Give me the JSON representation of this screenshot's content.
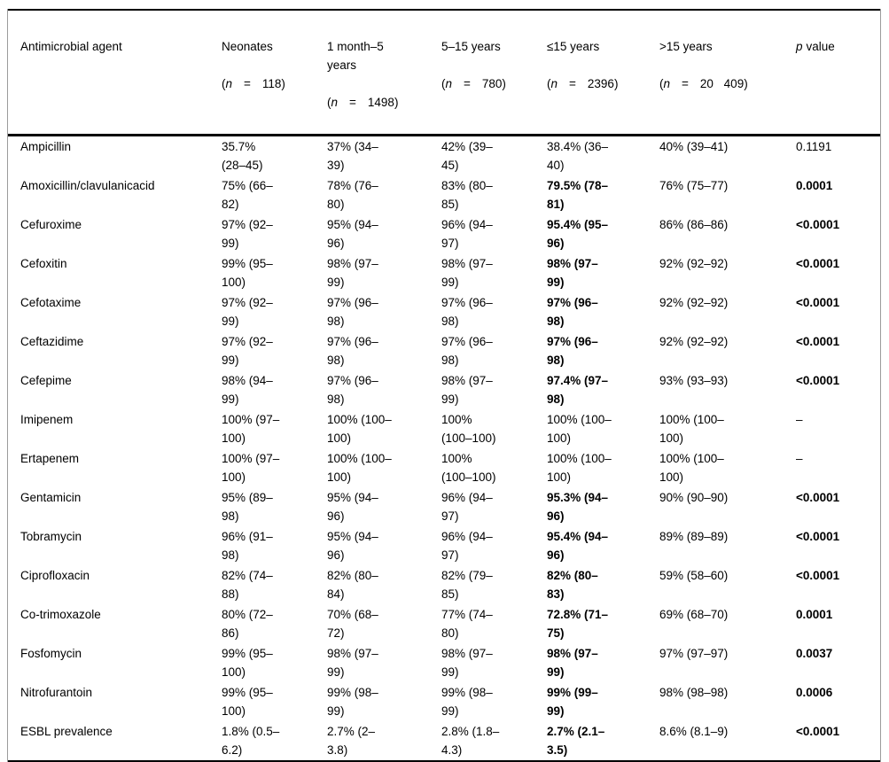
{
  "table": {
    "columns": [
      {
        "label": "Antimicrobial agent"
      },
      {
        "label": "Neonates",
        "n_open": "(",
        "n_sym": "n",
        "n_eq": "=",
        "n_val": "118)"
      },
      {
        "label": "1 month–5\nyears",
        "n_open": "(",
        "n_sym": "n",
        "n_eq": "=",
        "n_val": "1498)"
      },
      {
        "label": "5–15 years",
        "n_open": "(",
        "n_sym": "n",
        "n_eq": "=",
        "n_val": "780)"
      },
      {
        "label": "≤15 years",
        "n_open": "(",
        "n_sym": "n",
        "n_eq": "=",
        "n_val": "2396)"
      },
      {
        "label": ">15 years",
        "n_open": "(",
        "n_sym": "n",
        "n_eq": "=",
        "n_val": "20 409)"
      },
      {
        "label_sym": "p",
        "label_rest": "value"
      }
    ],
    "rows": [
      {
        "agent": "Ampicillin",
        "values": [
          "35.7%\n(28–45)",
          "37% (34–\n39)",
          "42% (39–\n45)",
          "38.4% (36–\n40)",
          "40% (39–41)"
        ],
        "p": "0.1191",
        "significant": false
      },
      {
        "agent": "Amoxicillin/clavulanicacid",
        "values": [
          "75% (66–\n82)",
          "78% (76–\n80)",
          "83% (80–\n85)",
          "79.5% (78–\n81)",
          "76% (75–77)"
        ],
        "p": "0.0001",
        "significant": true
      },
      {
        "agent": "Cefuroxime",
        "values": [
          "97% (92–\n99)",
          "95% (94–\n96)",
          "96% (94–\n97)",
          "95.4% (95–\n96)",
          "86% (86–86)"
        ],
        "p": "<0.0001",
        "significant": true
      },
      {
        "agent": "Cefoxitin",
        "values": [
          "99% (95–\n100)",
          "98% (97–\n99)",
          "98% (97–\n99)",
          "98% (97–\n99)",
          "92% (92–92)"
        ],
        "p": "<0.0001",
        "significant": true
      },
      {
        "agent": "Cefotaxime",
        "values": [
          "97% (92–\n99)",
          "97% (96–\n98)",
          "97% (96–\n98)",
          "97% (96–\n98)",
          "92% (92–92)"
        ],
        "p": "<0.0001",
        "significant": true
      },
      {
        "agent": "Ceftazidime",
        "values": [
          "97% (92–\n99)",
          "97% (96–\n98)",
          "97% (96–\n98)",
          "97% (96–\n98)",
          "92% (92–92)"
        ],
        "p": "<0.0001",
        "significant": true
      },
      {
        "agent": "Cefepime",
        "values": [
          "98% (94–\n99)",
          "97% (96–\n98)",
          "98% (97–\n99)",
          "97.4% (97–\n98)",
          "93% (93–93)"
        ],
        "p": "<0.0001",
        "significant": true
      },
      {
        "agent": "Imipenem",
        "values": [
          "100% (97–\n100)",
          "100% (100–\n100)",
          "100%\n(100–100)",
          "100% (100–\n100)",
          "100% (100–\n100)"
        ],
        "p": "–",
        "significant": false
      },
      {
        "agent": "Ertapenem",
        "values": [
          "100% (97–\n100)",
          "100% (100–\n100)",
          "100%\n(100–100)",
          "100% (100–\n100)",
          "100% (100–\n100)"
        ],
        "p": "–",
        "significant": false
      },
      {
        "agent": "Gentamicin",
        "values": [
          "95% (89–\n98)",
          "95% (94–\n96)",
          "96% (94–\n97)",
          "95.3% (94–\n96)",
          "90% (90–90)"
        ],
        "p": "<0.0001",
        "significant": true
      },
      {
        "agent": "Tobramycin",
        "values": [
          "96% (91–\n98)",
          "95% (94–\n96)",
          "96% (94–\n97)",
          "95.4% (94–\n96)",
          "89% (89–89)"
        ],
        "p": "<0.0001",
        "significant": true
      },
      {
        "agent": "Ciprofloxacin",
        "values": [
          "82% (74–\n88)",
          "82% (80–\n84)",
          "82% (79–\n85)",
          "82% (80–\n83)",
          "59% (58–60)"
        ],
        "p": "<0.0001",
        "significant": true
      },
      {
        "agent": "Co-trimoxazole",
        "values": [
          "80% (72–\n86)",
          "70% (68–\n72)",
          "77% (74–\n80)",
          "72.8% (71–\n75)",
          "69% (68–70)"
        ],
        "p": "0.0001",
        "significant": true
      },
      {
        "agent": "Fosfomycin",
        "values": [
          "99% (95–\n100)",
          "98% (97–\n99)",
          "98% (97–\n99)",
          "98% (97–\n99)",
          "97% (97–97)"
        ],
        "p": "0.0037",
        "significant": true
      },
      {
        "agent": "Nitrofurantoin",
        "values": [
          "99% (95–\n100)",
          "99% (98–\n99)",
          "99% (98–\n99)",
          "99% (99–\n99)",
          "98% (98–98)"
        ],
        "p": "0.0006",
        "significant": true
      },
      {
        "agent": "ESBL prevalence",
        "values": [
          "1.8% (0.5–\n6.2)",
          "2.7% (2–\n3.8)",
          "2.8% (1.8–\n4.3)",
          "2.7% (2.1–\n3.5)",
          "8.6% (8.1–9)"
        ],
        "p": "<0.0001",
        "significant": true
      }
    ]
  }
}
